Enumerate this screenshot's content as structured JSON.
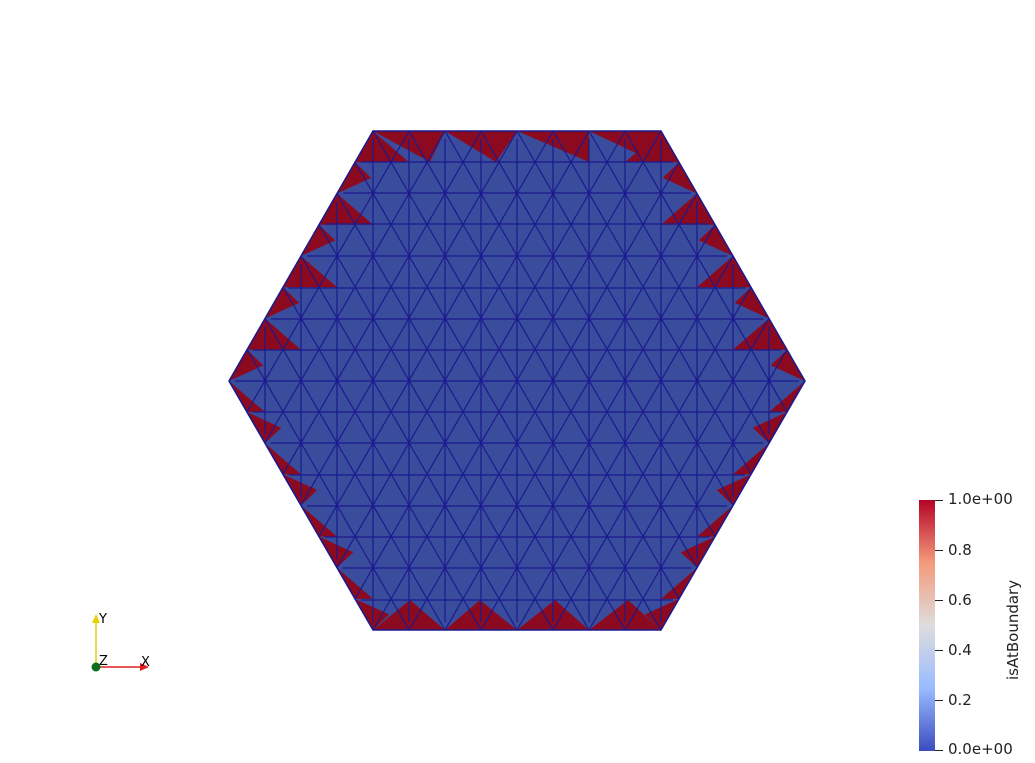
{
  "viewer": {
    "colors": {
      "interior": "#3a4d9c",
      "boundary": "#8b0a1f",
      "edge": "#1a1a8f",
      "background": "#ffffff"
    }
  },
  "colorbar": {
    "title": "isAtBoundary",
    "ticks": [
      "1.0e+00",
      "0.8",
      "0.6",
      "0.4",
      "0.2",
      "0.0e+00"
    ],
    "colors": [
      "#b40426",
      "#f49a7b",
      "#dddddd",
      "#9abbff",
      "#3b4cc0"
    ]
  },
  "orientation_axes": {
    "x_label": "X",
    "y_label": "Y",
    "z_label": "Z",
    "x_icon": "x-axis-arrow-icon",
    "y_icon": "y-axis-arrow-icon",
    "z_icon": "z-axis-dot-icon"
  }
}
